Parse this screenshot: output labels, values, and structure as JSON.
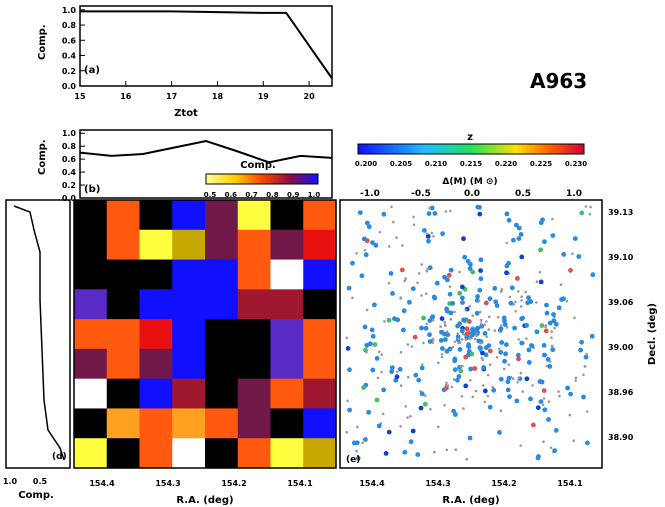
{
  "cluster_name": "A963",
  "panel_a": {
    "tag": "(a)",
    "ylabel": "Comp.",
    "xlabel": "Ztot",
    "xlim": [
      15,
      20.5
    ],
    "ylim": [
      0,
      1.05
    ],
    "xticks": [
      15,
      16,
      17,
      18,
      19,
      20
    ],
    "yticks": [
      0.0,
      0.2,
      0.4,
      0.6,
      0.8,
      1.0
    ],
    "ytick_labels": [
      "0.0",
      "0.2",
      "0.4",
      "0.6",
      "0.8",
      "1.0"
    ],
    "curve_x": [
      15,
      16,
      17,
      18,
      19,
      19.5,
      20.5
    ],
    "curve_y": [
      0.98,
      0.98,
      0.98,
      0.97,
      0.96,
      0.96,
      0.1
    ]
  },
  "panel_b": {
    "tag": "(b)",
    "ylabel": "Comp.",
    "xlim": [
      0,
      8
    ],
    "ylim": [
      0,
      1.05
    ],
    "yticks": [
      0.0,
      0.2,
      0.4,
      0.6,
      0.8,
      1.0
    ],
    "ytick_labels": [
      "0.0",
      "0.2",
      "0.4",
      "0.6",
      "0.8",
      "1.0"
    ],
    "curve_x": [
      0,
      1,
      2,
      3,
      4,
      5,
      6,
      7,
      8
    ],
    "curve_y": [
      0.7,
      0.65,
      0.68,
      0.78,
      0.88,
      0.72,
      0.55,
      0.65,
      0.62
    ]
  },
  "comp_colorbar": {
    "label": "Comp.",
    "tick_labels": [
      "0.5",
      "0.6",
      "0.7",
      "0.8",
      "0.9",
      "1.0"
    ]
  },
  "heatmap": {
    "xlabel": "R.A. (deg)",
    "xticks": [
      "154.4",
      "154.3",
      "154.2",
      "154.1"
    ],
    "columns": 8,
    "rows": 9,
    "values": [
      [
        0.5,
        0.8,
        0.5,
        1.0,
        0.7,
        0.95,
        0.5,
        0.8
      ],
      [
        0.5,
        0.8,
        0.95,
        0.92,
        0.7,
        0.8,
        0.7,
        0.85
      ],
      [
        0.5,
        0.5,
        0.5,
        1.0,
        1.0,
        0.8,
        1.0,
        1.0
      ],
      [
        0.97,
        0.5,
        1.0,
        1.0,
        1.0,
        0.75,
        0.75,
        0.5
      ],
      [
        0.8,
        0.8,
        0.85,
        1.0,
        0.5,
        0.5,
        0.98,
        0.8
      ],
      [
        0.7,
        0.8,
        0.7,
        1.0,
        0.5,
        0.5,
        0.98,
        0.8
      ],
      [
        0.5,
        0.5,
        1.0,
        0.75,
        0.5,
        0.7,
        0.8,
        0.75
      ],
      [
        0.5,
        0.88,
        0.8,
        0.88,
        0.8,
        0.7,
        0.5,
        1.0
      ],
      [
        0.95,
        0.5,
        0.8,
        0.5,
        0.5,
        0.8,
        0.95,
        0.9
      ]
    ],
    "special_white_cells": [
      [
        2,
        6
      ],
      [
        6,
        0
      ],
      [
        8,
        3
      ]
    ]
  },
  "side_panel": {
    "xlabel": "Comp.",
    "xtick_labels": [
      "1.0",
      "0.5"
    ],
    "tag": "(d)"
  },
  "scatter_panel": {
    "tag": "(e)",
    "xlabel": "R.A. (deg)",
    "xticks": [
      "154.4",
      "154.3",
      "154.2",
      "154.1"
    ],
    "ylabel": "Decl. (deg)",
    "yticks": [
      "39.13",
      "39.10",
      "39.06",
      "39.00",
      "38.96",
      "38.90"
    ],
    "top_axis_label": "Δ(M) (M ⊙)",
    "top_ticks": [
      "-1.0",
      "-0.5",
      "0.0",
      "0.5",
      "1.0"
    ]
  },
  "z_colorbar": {
    "label": "z",
    "tick_labels": [
      "0.200",
      "0.205",
      "0.210",
      "0.215",
      "0.220",
      "0.225",
      "0.230"
    ]
  },
  "colors": {
    "heat_low": "#000000",
    "heat_mid": "#ff4400",
    "heat_high": "#ffff66",
    "blue": "#1010ff",
    "point_main": "#2a8ae0",
    "point_gray": "#999999"
  }
}
